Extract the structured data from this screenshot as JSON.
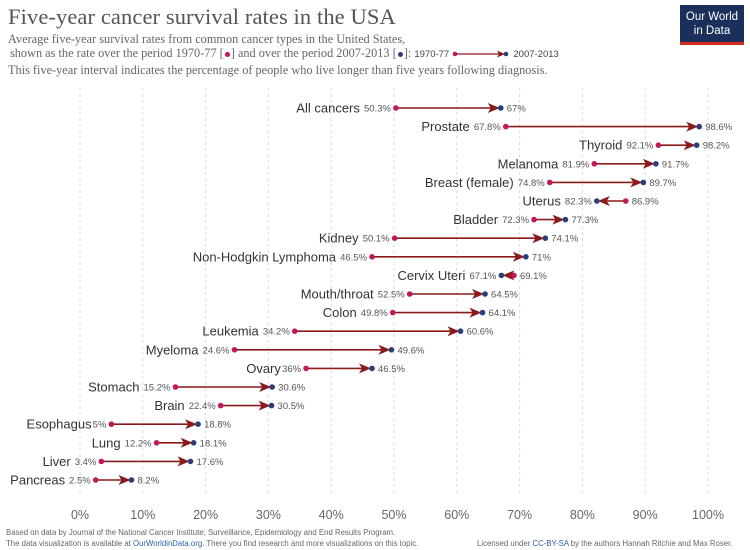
{
  "header": {
    "title": "Five-year cancer survival rates in the USA",
    "subtitle_line1": "Average five-year survival rates from common cancer types in the United States,",
    "subtitle_line2_a": "shown as the rate over the period 1970-77 [",
    "subtitle_line2_b": "] and over the period 2007-2013 [",
    "subtitle_line2_c": "]:",
    "subtitle_line3": "This five-year interval indicates the percentage of people who live longer than five years following diagnosis.",
    "legend_start": "1970-77",
    "legend_end": "2007-2013"
  },
  "logo": {
    "line1": "Our World",
    "line2": "in Data"
  },
  "colors": {
    "start": "#c2185b",
    "end": "#2c3e7a",
    "arrow": "#8b1a1a",
    "grid": "#dddddd"
  },
  "chart_data": {
    "type": "dumbbell-arrow",
    "xlim": [
      0,
      100
    ],
    "xticks": [
      "0%",
      "10%",
      "20%",
      "30%",
      "40%",
      "50%",
      "60%",
      "70%",
      "80%",
      "90%",
      "100%"
    ],
    "series_names": [
      "1970-77",
      "2007-2013"
    ],
    "rows": [
      {
        "label": "All cancers",
        "start": 50.3,
        "end": 67,
        "start_label": "50.3%",
        "end_label": "67%"
      },
      {
        "label": "Prostate",
        "start": 67.8,
        "end": 98.6,
        "start_label": "67.8%",
        "end_label": "98.6%"
      },
      {
        "label": "Thyroid",
        "start": 92.1,
        "end": 98.2,
        "start_label": "92.1%",
        "end_label": "98.2%"
      },
      {
        "label": "Melanoma",
        "start": 81.9,
        "end": 91.7,
        "start_label": "81.9%",
        "end_label": "91.7%"
      },
      {
        "label": "Breast (female)",
        "start": 74.8,
        "end": 89.7,
        "start_label": "74.8%",
        "end_label": "89.7%"
      },
      {
        "label": "Uterus",
        "start": 86.9,
        "end": 82.3,
        "start_label": "86.9%",
        "end_label": "82.3%"
      },
      {
        "label": "Bladder",
        "start": 72.3,
        "end": 77.3,
        "start_label": "72.3%",
        "end_label": "77.3%"
      },
      {
        "label": "Kidney",
        "start": 50.1,
        "end": 74.1,
        "start_label": "50.1%",
        "end_label": "74.1%"
      },
      {
        "label": "Non-Hodgkin Lymphoma",
        "start": 46.5,
        "end": 71,
        "start_label": "46.5%",
        "end_label": "71%"
      },
      {
        "label": "Cervix Uteri",
        "start": 69.1,
        "end": 67.1,
        "start_label": "69.1%",
        "end_label": "67.1%"
      },
      {
        "label": "Mouth/throat",
        "start": 52.5,
        "end": 64.5,
        "start_label": "52.5%",
        "end_label": "64.5%"
      },
      {
        "label": "Colon",
        "start": 49.8,
        "end": 64.1,
        "start_label": "49.8%",
        "end_label": "64.1%"
      },
      {
        "label": "Leukemia",
        "start": 34.2,
        "end": 60.6,
        "start_label": "34.2%",
        "end_label": "60.6%"
      },
      {
        "label": "Myeloma",
        "start": 24.6,
        "end": 49.6,
        "start_label": "24.6%",
        "end_label": "49.6%"
      },
      {
        "label": "Ovary",
        "start": 36,
        "end": 46.5,
        "start_label": "36%",
        "end_label": "46.5%"
      },
      {
        "label": "Stomach",
        "start": 15.2,
        "end": 30.6,
        "start_label": "15.2%",
        "end_label": "30.6%"
      },
      {
        "label": "Brain",
        "start": 22.4,
        "end": 30.5,
        "start_label": "22.4%",
        "end_label": "30.5%"
      },
      {
        "label": "Esophagus",
        "start": 5,
        "end": 18.8,
        "start_label": "5%",
        "end_label": "18.8%"
      },
      {
        "label": "Lung",
        "start": 12.2,
        "end": 18.1,
        "start_label": "12.2%",
        "end_label": "18.1%"
      },
      {
        "label": "Liver",
        "start": 3.4,
        "end": 17.6,
        "start_label": "3.4%",
        "end_label": "17.6%"
      },
      {
        "label": "Pancreas",
        "start": 2.5,
        "end": 8.2,
        "start_label": "2.5%",
        "end_label": "8.2%"
      }
    ]
  },
  "footer": {
    "line1": "Based on data by Journal of the National Cancer Institute; Surveillance, Epidemiology and End Results Program.",
    "line2_a": "The data visualization is available at ",
    "line2_link": "OurWorldinData.org",
    "line2_b": ". There you find research and more visualizations on this topic.",
    "license_a": "Licensed under ",
    "license_link": "CC-BY-SA",
    "license_b": " by the authors Hannah Ritchie and Max Roser."
  }
}
